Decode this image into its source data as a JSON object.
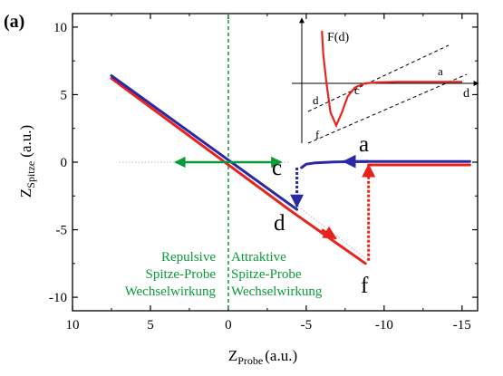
{
  "panel_label": "(a)",
  "axes": {
    "xlabel_main": "Z",
    "xlabel_sub": "Probe",
    "xlabel_unit": "(a.u.)",
    "ylabel_main": "Z",
    "ylabel_sub": "Spitze",
    "ylabel_unit": "(a.u.)"
  },
  "regions": {
    "left": [
      "Repulsive",
      "Spitze-Probe",
      "Wechselwirkung"
    ],
    "right": [
      "Attraktive",
      "Spitze-Probe",
      "Wechselwirkung"
    ]
  },
  "point_labels": {
    "a": "a",
    "c": "c",
    "d": "d",
    "f": "f"
  },
  "inset": {
    "ylabel": "F(d)",
    "xlabel": "d",
    "point_labels": {
      "a": "a",
      "c": "c",
      "d": "d",
      "f": "f"
    }
  },
  "colors": {
    "red": "#e8231c",
    "blue": "#2a2aa6",
    "green": "#0a9a3a",
    "gray": "#bbbbbb"
  },
  "chart_data": {
    "type": "line",
    "xlim": [
      10,
      -16
    ],
    "ylim": [
      -11,
      11
    ],
    "xticks": [
      10,
      5,
      0,
      -5,
      -10,
      -15
    ],
    "xtick_labels": [
      "10",
      "5",
      "0",
      "-5",
      "-10",
      "-15"
    ],
    "yticks": [
      10,
      5,
      0,
      -5,
      -10
    ],
    "ytick_labels": [
      "10",
      "5",
      "0",
      "-5",
      "-10"
    ],
    "zero_line_x": 0,
    "series": [
      {
        "color": "#e8231c",
        "x": [
          7.5,
          -4.0,
          -8.8
        ],
        "y": [
          6.2,
          -3.6,
          -7.5
        ],
        "arrow_at": 1.55
      },
      {
        "color": "#e8231c",
        "x": [
          -9.0,
          -15.5
        ],
        "y": [
          -0.2,
          -0.2
        ]
      },
      {
        "color": "#2a2aa6",
        "x": [
          7.5,
          -4.4
        ],
        "y": [
          6.4,
          -3.5
        ]
      },
      {
        "color": "#2a2aa6",
        "x": [
          -4.7,
          -5.0,
          -5.6,
          -6.8,
          -9.0,
          -12.0,
          -15.5
        ],
        "y": [
          -0.4,
          -0.15,
          -0.05,
          0.02,
          0.05,
          0.05,
          0.05
        ],
        "arrow_at": 2.5
      }
    ],
    "jumps": [
      {
        "color": "#2a2aa6",
        "x": [
          -4.4,
          -4.4
        ],
        "y": [
          -0.4,
          -3.3
        ]
      },
      {
        "color": "#e8231c",
        "x": [
          -9.0,
          -9.0
        ],
        "y": [
          -7.3,
          -0.2
        ]
      }
    ],
    "guides": [
      {
        "color": "#bbbbbb",
        "x": [
          7.0,
          -4.0
        ],
        "y": [
          0.0,
          0.0
        ]
      },
      {
        "color": "#bbbbbb",
        "x": [
          -4.5,
          -9.0
        ],
        "y": [
          -3.3,
          -7.3
        ]
      }
    ],
    "green_arrow": {
      "x": [
        3.4,
        -3.4
      ],
      "y": [
        0,
        0
      ]
    },
    "inset_curve": {
      "d": [
        0.02,
        0.03,
        0.05,
        0.08,
        0.12,
        0.16,
        0.2,
        0.25,
        0.32,
        0.42,
        0.55,
        0.7,
        0.85,
        1.0
      ],
      "F": [
        1.0,
        0.55,
        0.05,
        -0.55,
        -0.8,
        -0.55,
        -0.25,
        -0.08,
        0.0,
        0.02,
        0.03,
        0.03,
        0.03,
        0.03
      ]
    }
  }
}
